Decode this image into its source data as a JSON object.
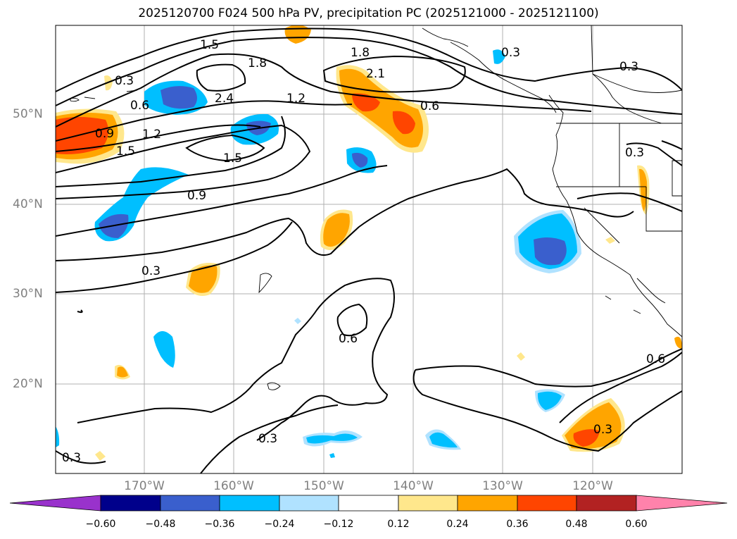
{
  "title": "2025120700 F024 500 hPa PV, precipitation PC (2025121000 - 2025121100)",
  "latitude_labels": [
    "50°N",
    "40°N",
    "30°N",
    "20°N"
  ],
  "longitude_labels": [
    "170°W",
    "160°W",
    "150°W",
    "140°W",
    "130°W",
    "120°W"
  ],
  "contour_labels": [
    "1.5",
    "1.8",
    "2.1",
    "2.4",
    "1.2",
    "0.9",
    "1.5",
    "0.6",
    "0.3",
    "0.3",
    "0.3",
    "0.3",
    "0.6",
    "0.6",
    "0.3",
    "0.3",
    "0.9",
    "1.5",
    "1.2",
    "0.6",
    "0.3",
    "1.8",
    "0.3"
  ],
  "colorbar": {
    "ticks": [
      "−0.60",
      "−0.48",
      "−0.36",
      "−0.24",
      "−0.12",
      "0.12",
      "0.24",
      "0.36",
      "0.48",
      "0.60"
    ],
    "colors": [
      "#9932cc",
      "#00008b",
      "#3a5fcd",
      "#00bfff",
      "#b0e2ff",
      "#ffffff",
      "#ffe78c",
      "#ffa500",
      "#ff4500",
      "#b22222",
      "#ff82ab"
    ]
  }
}
